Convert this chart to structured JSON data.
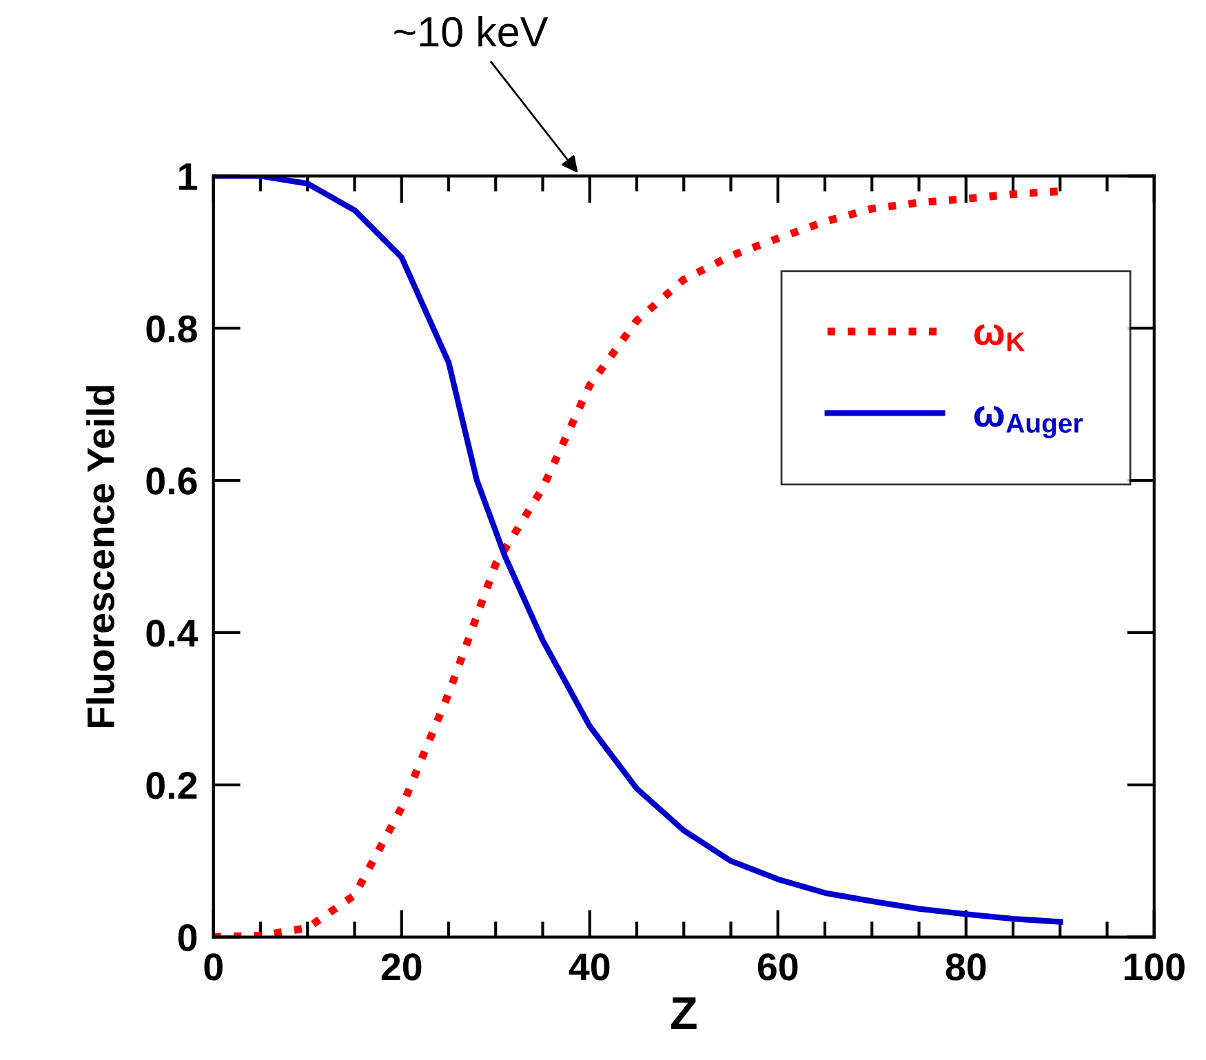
{
  "chart_data": {
    "type": "line",
    "xlabel": "Z",
    "ylabel": "Fluorescence Yeild",
    "xlim": [
      0,
      100
    ],
    "xticks": [
      0,
      20,
      40,
      60,
      80,
      100
    ],
    "ylim": [
      0,
      1
    ],
    "yticks": [
      0,
      0.2,
      0.4,
      0.6,
      0.8,
      1
    ],
    "legend": "top right",
    "grid": false,
    "annotations": [
      "~10 keV"
    ],
    "series": [
      {
        "name": "ω$_{K}$",
        "color": "#ff0000",
        "line_style": "dotted",
        "x": [
          0,
          5,
          10,
          15,
          20,
          25,
          30,
          35,
          40,
          45,
          50,
          55,
          60,
          65,
          70,
          75,
          80,
          85,
          90
        ],
        "values": [
          0,
          0.002,
          0.012,
          0.055,
          0.17,
          0.32,
          0.49,
          0.59,
          0.725,
          0.81,
          0.864,
          0.895,
          0.918,
          0.94,
          0.957,
          0.965,
          0.97,
          0.976,
          0.98
        ]
      },
      {
        "name": "ω$_{Auger}$",
        "color": "#0000cc",
        "line_style": "solid",
        "x": [
          0,
          5,
          10,
          15,
          20,
          25,
          28,
          31,
          35,
          40,
          45,
          50,
          55,
          60,
          65,
          70,
          75,
          80,
          85,
          90
        ],
        "values": [
          1,
          1,
          0.99,
          0.955,
          0.893,
          0.755,
          0.6,
          0.5,
          0.39,
          0.277,
          0.195,
          0.14,
          0.1,
          0.076,
          0.058,
          0.047,
          0.037,
          0.03,
          0.024,
          0.02
        ]
      }
    ]
  }
}
